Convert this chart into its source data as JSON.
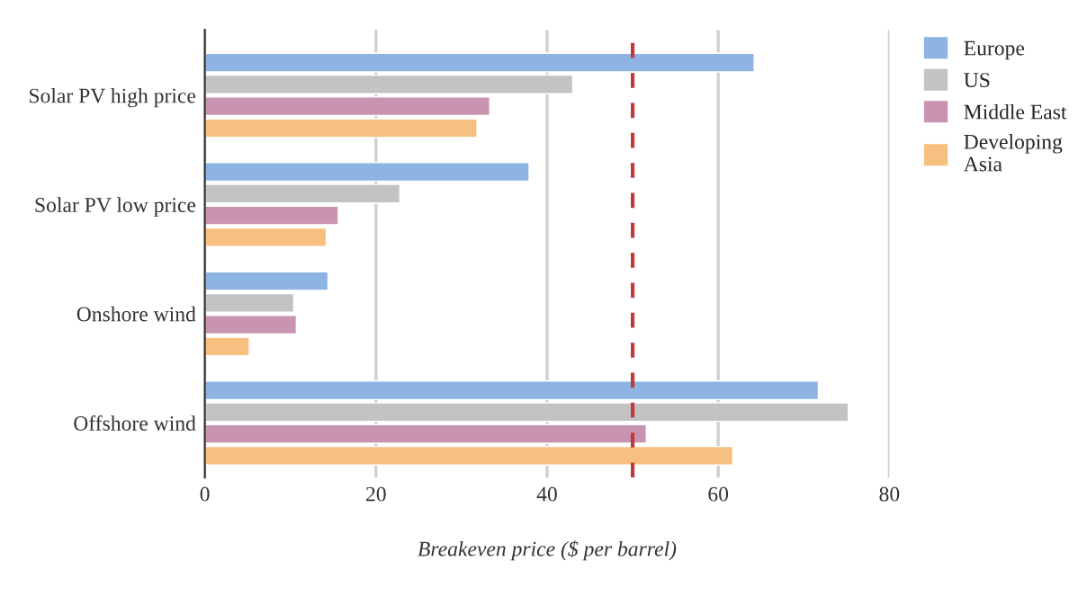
{
  "chart_data": {
    "type": "bar",
    "orientation": "horizontal",
    "xlabel": "Breakeven price ($ per barrel)",
    "categories": [
      "Solar PV high price",
      "Solar PV low price",
      "Onshore wind",
      "Offshore wind"
    ],
    "series": [
      {
        "name": "Europe",
        "color": "#8db4e2",
        "values": [
          64.2,
          37.9,
          14.4,
          71.7
        ]
      },
      {
        "name": "US",
        "color": "#c3c3c3",
        "values": [
          43.0,
          22.8,
          10.4,
          75.2
        ]
      },
      {
        "name": "Middle East",
        "color": "#c994b0",
        "values": [
          33.3,
          15.6,
          10.7,
          51.6
        ]
      },
      {
        "name": "Developing\nAsia",
        "color": "#f7c080",
        "values": [
          31.8,
          14.2,
          5.2,
          61.7
        ]
      }
    ],
    "xlim": [
      0,
      80
    ],
    "xticks": [
      0,
      20,
      40,
      60,
      80
    ],
    "grid": "x",
    "legend": "right",
    "ref_lines": [
      {
        "axis": "x",
        "value": 50,
        "color": "#c0393b",
        "line_style": "dashed"
      }
    ]
  }
}
